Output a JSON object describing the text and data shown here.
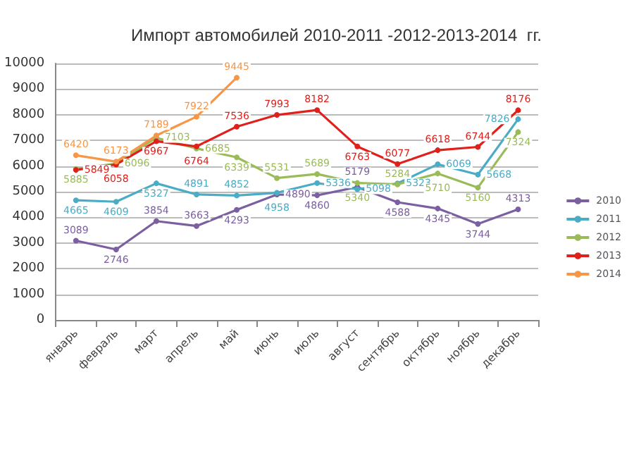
{
  "chart_data": {
    "type": "line",
    "title": "Импорт автомобилей 2010-2011 -2012-2013-2014  гг.",
    "categories": [
      "январь",
      "февраль",
      "март",
      "апрель",
      "май",
      "июнь",
      "июль",
      "август",
      "сентябрь",
      "октябрь",
      "ноябрь",
      "декабрь"
    ],
    "series": [
      {
        "name": "2010",
        "color": "#7b5fa0",
        "values": [
          3089,
          2746,
          3854,
          3663,
          4293,
          4890,
          4860,
          5179,
          4588,
          4345,
          3744,
          4313
        ]
      },
      {
        "name": "2011",
        "color": "#4bacc6",
        "values": [
          4665,
          4609,
          5327,
          4891,
          4852,
          4958,
          5336,
          5098,
          5323,
          6069,
          5668,
          7826
        ]
      },
      {
        "name": "2012",
        "color": "#9bbb59",
        "values": [
          5885,
          6096,
          7103,
          6685,
          6339,
          5531,
          5689,
          5340,
          5284,
          5710,
          5160,
          7324
        ]
      },
      {
        "name": "2013",
        "color": "#e0201b",
        "values": [
          5849,
          6058,
          6967,
          6764,
          7536,
          7993,
          8182,
          6763,
          6077,
          6618,
          6744,
          8176
        ]
      },
      {
        "name": "2014",
        "color": "#f79646",
        "values": [
          6420,
          6173,
          7189,
          7922,
          9445,
          null,
          null,
          null,
          null,
          null,
          null,
          null
        ]
      }
    ],
    "ylim": [
      0,
      10000
    ],
    "yticks": [
      0,
      1000,
      2000,
      3000,
      4000,
      5000,
      6000,
      7000,
      8000,
      9000,
      10000
    ],
    "grid": "y",
    "legend": "right",
    "marker": "circle",
    "data_labels": true
  }
}
